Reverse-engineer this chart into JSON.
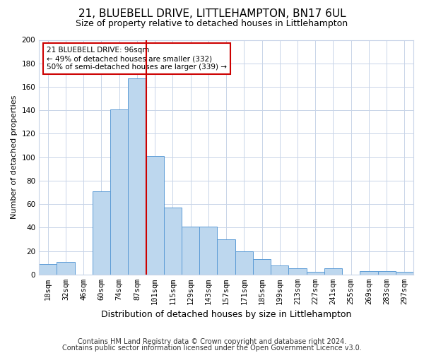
{
  "title": "21, BLUEBELL DRIVE, LITTLEHAMPTON, BN17 6UL",
  "subtitle": "Size of property relative to detached houses in Littlehampton",
  "xlabel": "Distribution of detached houses by size in Littlehampton",
  "ylabel": "Number of detached properties",
  "bar_labels": [
    "18sqm",
    "32sqm",
    "46sqm",
    "60sqm",
    "74sqm",
    "87sqm",
    "101sqm",
    "115sqm",
    "129sqm",
    "143sqm",
    "157sqm",
    "171sqm",
    "185sqm",
    "199sqm",
    "213sqm",
    "227sqm",
    "241sqm",
    "255sqm",
    "269sqm",
    "283sqm",
    "297sqm"
  ],
  "bar_values": [
    9,
    11,
    0,
    71,
    141,
    167,
    101,
    57,
    41,
    41,
    30,
    20,
    13,
    8,
    5,
    2,
    5,
    0,
    3,
    3,
    2
  ],
  "bar_color": "#bdd7ee",
  "bar_edge_color": "#5b9bd5",
  "vline_x": 5.5,
  "annotation_title": "21 BLUEBELL DRIVE: 96sqm",
  "annotation_line1": "← 49% of detached houses are smaller (332)",
  "annotation_line2": "50% of semi-detached houses are larger (339) →",
  "annotation_box_color": "#ffffff",
  "annotation_box_edge": "#cc0000",
  "vline_color": "#cc0000",
  "ylim": [
    0,
    200
  ],
  "yticks": [
    0,
    20,
    40,
    60,
    80,
    100,
    120,
    140,
    160,
    180,
    200
  ],
  "footnote1": "Contains HM Land Registry data © Crown copyright and database right 2024.",
  "footnote2": "Contains public sector information licensed under the Open Government Licence v3.0.",
  "bg_color": "#ffffff",
  "grid_color": "#c8d4e8",
  "title_fontsize": 11,
  "subtitle_fontsize": 9,
  "xlabel_fontsize": 9,
  "ylabel_fontsize": 8,
  "tick_fontsize": 7.5,
  "footnote_fontsize": 7,
  "title_fontweight": "normal"
}
